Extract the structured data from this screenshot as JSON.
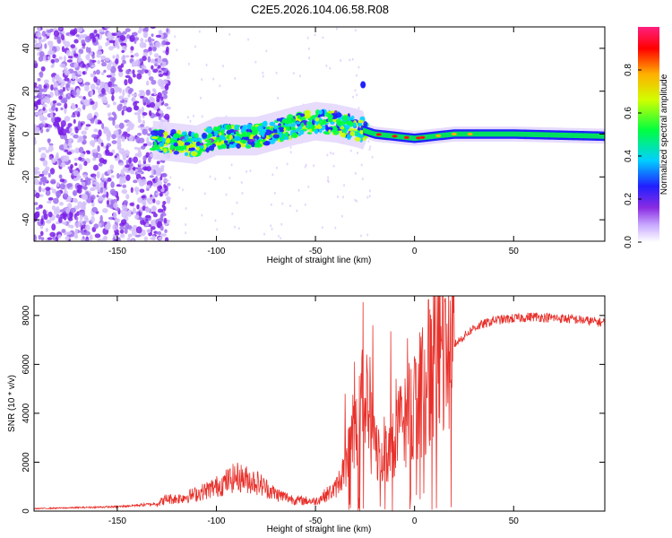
{
  "title": "C2E5.2026.104.06.58.R08",
  "chart_data": [
    {
      "type": "heatmap",
      "xlabel": "Height of straight line (km)",
      "ylabel": "Frequency (Hz)",
      "xlim": [
        -192,
        96
      ],
      "ylim": [
        -50,
        50
      ],
      "xticks": [
        -150,
        -100,
        -50,
        0,
        50
      ],
      "xtick_labels": [
        "-150",
        "-100",
        "-50",
        "0",
        "50"
      ],
      "yticks": [
        -40,
        -20,
        0,
        20,
        40
      ],
      "ytick_labels": [
        "-40",
        "-20",
        "0",
        "20",
        "40"
      ],
      "colorbar": {
        "label": "Normalized spectral amplitude",
        "range": [
          0,
          1
        ],
        "ticks": [
          0,
          0.2,
          0.4,
          0.6,
          0.8
        ],
        "tick_labels": [
          "0.0",
          "0.2",
          "0.4",
          "0.6",
          "0.8"
        ],
        "colors": [
          "#ffffff",
          "#c8a8ff",
          "#8a2be2",
          "#2020ff",
          "#00d0ff",
          "#00ff40",
          "#d0ff00",
          "#ffb000",
          "#ff0000",
          "#ff2080"
        ]
      },
      "description_values": {
        "noise_region_x": [
          -192,
          -130
        ],
        "line_center_freq": [
          {
            "x": -130,
            "y": -3
          },
          {
            "x": -110,
            "y": -5
          },
          {
            "x": -100,
            "y": -1
          },
          {
            "x": -80,
            "y": -1
          },
          {
            "x": -60,
            "y": 4
          },
          {
            "x": -50,
            "y": 6
          },
          {
            "x": -40,
            "y": 5
          },
          {
            "x": -30,
            "y": 3
          },
          {
            "x": -20,
            "y": 0
          },
          {
            "x": 0,
            "y": -2
          },
          {
            "x": 20,
            "y": 0
          },
          {
            "x": 50,
            "y": 0
          },
          {
            "x": 96,
            "y": -1
          }
        ],
        "spike": {
          "x": -26,
          "y": 23
        }
      }
    },
    {
      "type": "line",
      "xlabel": "Height of straight line (km)",
      "ylabel": "SNR (10 * v/v)",
      "xlim": [
        -192,
        96
      ],
      "ylim": [
        0,
        8800
      ],
      "xticks": [
        -150,
        -100,
        -50,
        0,
        50
      ],
      "xtick_labels": [
        "-150",
        "-100",
        "-50",
        "0",
        "50"
      ],
      "yticks": [
        0,
        2000,
        4000,
        6000,
        8000
      ],
      "ytick_labels": [
        "0",
        "2000",
        "4000",
        "6000",
        "8000"
      ],
      "color": "#e8312b",
      "envelope": {
        "x": [
          -192,
          -150,
          -130,
          -125,
          -120,
          -110,
          -100,
          -90,
          -80,
          -70,
          -60,
          -50,
          -40,
          -35,
          -30,
          -25,
          -20,
          -15,
          -10,
          -5,
          0,
          5,
          10,
          20,
          30,
          40,
          60,
          80,
          96
        ],
        "y": [
          100,
          180,
          300,
          500,
          500,
          700,
          1000,
          1400,
          1200,
          700,
          450,
          400,
          900,
          1800,
          3500,
          4500,
          2500,
          2200,
          3000,
          3800,
          4500,
          5000,
          5800,
          6800,
          7500,
          7800,
          7950,
          7850,
          7700
        ]
      },
      "spikes": [
        {
          "x": -26,
          "y": 8550
        },
        {
          "x": -21,
          "y": 7600
        },
        {
          "x": -12,
          "y": 7350
        },
        {
          "x": 7,
          "y": 8650
        },
        {
          "x": -35,
          "y": 4800
        }
      ]
    }
  ]
}
